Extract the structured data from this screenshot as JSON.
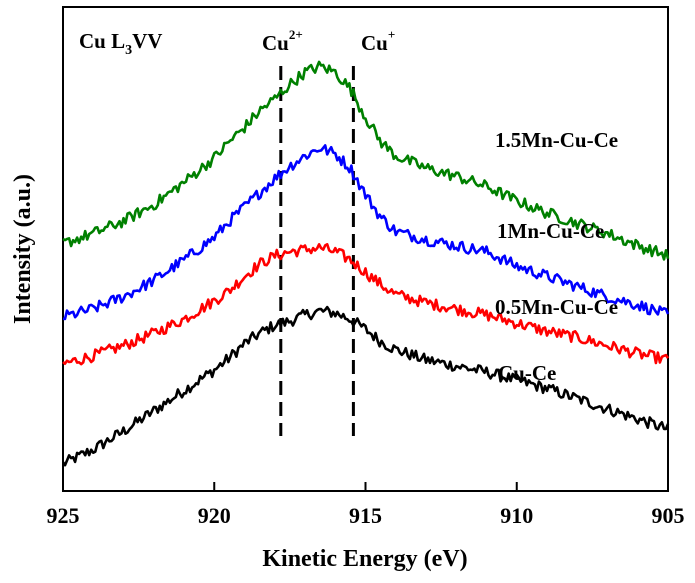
{
  "chart_data": {
    "type": "line",
    "title": "Cu L3VV",
    "title_parts": {
      "main": "Cu L",
      "sub": "3",
      "tail": "VV"
    },
    "xlabel": "Kinetic Energy (eV)",
    "ylabel": "Intensity (a.u.)",
    "xlim": [
      925,
      905
    ],
    "ylim": [
      0,
      1
    ],
    "x_reversed": true,
    "x_ticks": [
      925,
      920,
      915,
      910,
      905
    ],
    "x_tick_labels": [
      "925",
      "920",
      "915",
      "910",
      "905"
    ],
    "y_ticks_shown": false,
    "grid": false,
    "annotations": [
      {
        "text": "Cu",
        "sup": "2+",
        "x": 917.8
      },
      {
        "text": "Cu",
        "sup": "+",
        "x": 915.4
      }
    ],
    "series": [
      {
        "name": "Cu-Ce",
        "color": "#000000",
        "x": [
          925.0,
          924.0,
          923.0,
          922.0,
          921.0,
          920.0,
          919.5,
          919.0,
          918.5,
          918.0,
          917.5,
          917.0,
          916.5,
          916.0,
          915.5,
          915.0,
          914.5,
          914.0,
          913.0,
          912.0,
          911.0,
          910.0,
          909.0,
          908.0,
          907.0,
          906.0,
          905.0
        ],
        "values": [
          0.01,
          0.045,
          0.09,
          0.14,
          0.19,
          0.24,
          0.27,
          0.305,
          0.33,
          0.35,
          0.36,
          0.375,
          0.385,
          0.38,
          0.365,
          0.34,
          0.31,
          0.29,
          0.265,
          0.25,
          0.235,
          0.215,
          0.195,
          0.17,
          0.145,
          0.12,
          0.095
        ]
      },
      {
        "name": "0.5Mn-Cu-Ce",
        "color": "#ff0000",
        "x": [
          925.0,
          924.0,
          923.0,
          922.0,
          921.0,
          920.0,
          919.5,
          919.0,
          918.5,
          918.0,
          917.5,
          917.0,
          916.5,
          916.0,
          915.5,
          915.0,
          914.5,
          914.0,
          913.0,
          912.0,
          911.0,
          910.0,
          909.0,
          908.0,
          907.0,
          906.0,
          905.0
        ],
        "values": [
          0.255,
          0.275,
          0.3,
          0.33,
          0.365,
          0.41,
          0.435,
          0.47,
          0.5,
          0.52,
          0.53,
          0.535,
          0.54,
          0.53,
          0.51,
          0.48,
          0.45,
          0.425,
          0.405,
          0.39,
          0.375,
          0.355,
          0.335,
          0.32,
          0.3,
          0.28,
          0.265
        ]
      },
      {
        "name": "1Mn-Cu-Ce",
        "color": "#0000ff",
        "x": [
          925.0,
          924.0,
          923.0,
          922.0,
          921.0,
          920.0,
          919.5,
          919.0,
          918.5,
          918.0,
          917.5,
          917.0,
          916.5,
          916.0,
          915.5,
          915.0,
          914.5,
          914.0,
          913.0,
          912.0,
          911.0,
          910.0,
          909.0,
          908.0,
          907.0,
          906.0,
          905.0
        ],
        "values": [
          0.37,
          0.39,
          0.42,
          0.46,
          0.51,
          0.565,
          0.605,
          0.64,
          0.675,
          0.71,
          0.74,
          0.765,
          0.785,
          0.77,
          0.735,
          0.67,
          0.615,
          0.58,
          0.56,
          0.545,
          0.53,
          0.495,
          0.47,
          0.445,
          0.42,
          0.4,
          0.375
        ]
      },
      {
        "name": "1.5Mn-Cu-Ce",
        "color": "#008000",
        "x": [
          925.0,
          924.0,
          923.0,
          922.0,
          921.0,
          920.0,
          919.5,
          919.0,
          918.5,
          918.0,
          917.5,
          917.0,
          916.5,
          916.0,
          915.5,
          915.0,
          914.5,
          914.0,
          913.0,
          912.0,
          911.0,
          910.0,
          909.0,
          908.0,
          907.0,
          906.0,
          905.0
        ],
        "values": [
          0.55,
          0.575,
          0.605,
          0.645,
          0.7,
          0.76,
          0.8,
          0.835,
          0.875,
          0.905,
          0.94,
          0.97,
          0.985,
          0.97,
          0.93,
          0.86,
          0.8,
          0.765,
          0.735,
          0.715,
          0.69,
          0.655,
          0.625,
          0.6,
          0.575,
          0.545,
          0.52
        ]
      }
    ]
  }
}
